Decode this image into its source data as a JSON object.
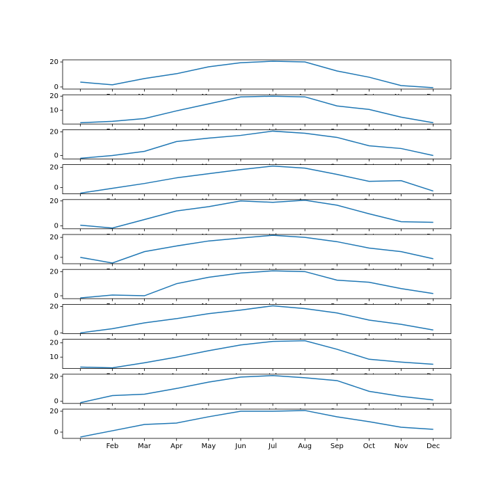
{
  "chart_data": [
    {
      "type": "line",
      "categories": [
        null,
        "Feb",
        "Mar",
        "Apr",
        "May",
        "Jun",
        "Jul",
        "Aug",
        "Sep",
        "Oct",
        "Nov",
        "Dec"
      ],
      "values": [
        3.9,
        1.7,
        6.7,
        10.6,
        16.1,
        19.4,
        20.6,
        20,
        12.8,
        7.8,
        1.1,
        -0.6
      ],
      "color": "#1f77b4",
      "ylim": [
        -1.7,
        21.7
      ],
      "yticks": [
        0,
        20
      ]
    },
    {
      "type": "line",
      "categories": [
        null,
        "Feb",
        "Mar",
        "Apr",
        "May",
        "Jun",
        "Jul",
        "Aug",
        "Sep",
        "Oct",
        "Nov",
        "Dec"
      ],
      "values": [
        1,
        2,
        4,
        9.5,
        14.5,
        19.5,
        20,
        19.5,
        13,
        10.5,
        5,
        1
      ],
      "color": "#1f77b4",
      "ylim": [
        0.1,
        21
      ],
      "yticks": [
        10,
        20
      ]
    },
    {
      "type": "line",
      "categories": [
        null,
        "Feb",
        "Mar",
        "Apr",
        "May",
        "Jun",
        "Jul",
        "Aug",
        "Sep",
        "Oct",
        "Nov",
        "Dec"
      ],
      "values": [
        -2.4,
        0,
        3.5,
        11.8,
        14.7,
        17,
        20.6,
        18.8,
        15.3,
        8.2,
        5.9,
        0
      ],
      "color": "#1f77b4",
      "ylim": [
        -2.9,
        21.8
      ],
      "yticks": [
        0,
        20
      ]
    },
    {
      "type": "line",
      "categories": [
        null,
        "Feb",
        "Mar",
        "Apr",
        "May",
        "Jun",
        "Jul",
        "Aug",
        "Sep",
        "Oct",
        "Nov",
        "Dec"
      ],
      "values": [
        -5.5,
        -0.7,
        4.1,
        9.7,
        13.8,
        17.9,
        21.4,
        19.3,
        13.1,
        6.2,
        6.9,
        -3.4
      ],
      "color": "#1f77b4",
      "ylim": [
        -6.2,
        22.8
      ],
      "yticks": [
        0,
        20
      ]
    },
    {
      "type": "line",
      "categories": [
        null,
        "Feb",
        "Mar",
        "Apr",
        "May",
        "Jun",
        "Jul",
        "Aug",
        "Sep",
        "Oct",
        "Nov",
        "Dec"
      ],
      "values": [
        0.6,
        -1.7,
        5.1,
        12,
        15.4,
        20,
        18.9,
        20.6,
        16.6,
        9.7,
        3.4,
        2.9
      ],
      "color": "#1f77b4",
      "ylim": [
        -2.3,
        21.1
      ],
      "yticks": [
        0,
        20
      ]
    },
    {
      "type": "line",
      "categories": [
        null,
        "Feb",
        "Mar",
        "Apr",
        "May",
        "Jun",
        "Jul",
        "Aug",
        "Sep",
        "Oct",
        "Nov",
        "Dec"
      ],
      "values": [
        0,
        -5.7,
        5.7,
        11.4,
        16.4,
        19.3,
        22.1,
        20,
        15.7,
        9.3,
        5.7,
        -1.4
      ],
      "color": "#1f77b4",
      "ylim": [
        -6.4,
        22.9
      ],
      "yticks": [
        0,
        20
      ]
    },
    {
      "type": "line",
      "categories": [
        null,
        "Feb",
        "Mar",
        "Apr",
        "May",
        "Jun",
        "Jul",
        "Aug",
        "Sep",
        "Oct",
        "Nov",
        "Dec"
      ],
      "values": [
        -1.8,
        0.6,
        0,
        10,
        15.3,
        18.8,
        20.6,
        20,
        12.9,
        11.2,
        5.9,
        1.8
      ],
      "color": "#1f77b4",
      "ylim": [
        -2.4,
        21.8
      ],
      "yticks": [
        0,
        20
      ]
    },
    {
      "type": "line",
      "categories": [
        null,
        "Feb",
        "Mar",
        "Apr",
        "May",
        "Jun",
        "Jul",
        "Aug",
        "Sep",
        "Oct",
        "Nov",
        "Dec"
      ],
      "values": [
        0,
        3.2,
        7.6,
        10.8,
        14.6,
        17.3,
        20.5,
        18.4,
        15.1,
        9.7,
        6.5,
        2.2
      ],
      "color": "#1f77b4",
      "ylim": [
        -0.5,
        21.6
      ],
      "yticks": [
        0,
        20
      ]
    },
    {
      "type": "line",
      "categories": [
        null,
        "Feb",
        "Mar",
        "Apr",
        "May",
        "Jun",
        "Jul",
        "Aug",
        "Sep",
        "Oct",
        "Nov",
        "Dec"
      ],
      "values": [
        3,
        2.5,
        6,
        10,
        14.5,
        18.5,
        21,
        21.5,
        15.5,
        8.5,
        6.5,
        5
      ],
      "color": "#1f77b4",
      "ylim": [
        2,
        22.5
      ],
      "yticks": [
        10,
        20
      ]
    },
    {
      "type": "line",
      "categories": [
        null,
        "Feb",
        "Mar",
        "Apr",
        "May",
        "Jun",
        "Jul",
        "Aug",
        "Sep",
        "Oct",
        "Nov",
        "Dec"
      ],
      "values": [
        -1.1,
        4.6,
        5.7,
        10.3,
        15.4,
        19.4,
        20.6,
        18.9,
        16.6,
        8,
        4,
        1.1
      ],
      "color": "#1f77b4",
      "ylim": [
        -1.7,
        21.7
      ],
      "yticks": [
        0,
        20
      ]
    },
    {
      "type": "line",
      "categories": [
        null,
        "Feb",
        "Mar",
        "Apr",
        "May",
        "Jun",
        "Jul",
        "Aug",
        "Sep",
        "Oct",
        "Nov",
        "Dec"
      ],
      "values": [
        -4.7,
        1.3,
        7.3,
        8.7,
        14.7,
        20,
        20,
        20.7,
        14.7,
        10,
        4.7,
        2.7
      ],
      "color": "#1f77b4",
      "ylim": [
        -6,
        22
      ],
      "yticks": [
        0,
        20
      ]
    }
  ]
}
